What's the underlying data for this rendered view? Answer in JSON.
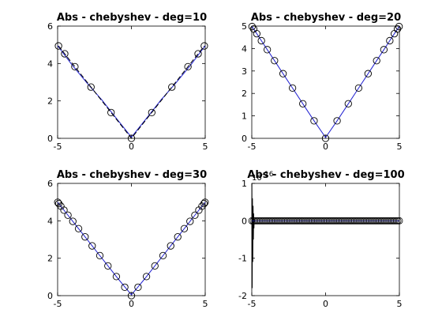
{
  "chart_data": [
    {
      "type": "line",
      "title": "Abs - chebyshev - deg=10",
      "xlim": [
        -5,
        5
      ],
      "ylim": [
        0,
        6
      ],
      "xticks": [
        -5,
        0,
        5
      ],
      "yticks": [
        0,
        2,
        4,
        6
      ],
      "grid": false,
      "series": [
        {
          "style": "blue-solid",
          "x": [
            -5,
            -4,
            -3,
            -2,
            -1,
            0,
            1,
            2,
            3,
            4,
            5
          ],
          "y": [
            4.95,
            3.9,
            2.95,
            2.05,
            1.05,
            0.06,
            1.05,
            2.05,
            2.95,
            3.9,
            4.95
          ]
        },
        {
          "style": "black-dashed",
          "x": [
            -4.94,
            -4.52,
            -3.83,
            -2.74,
            -1.38,
            0,
            1.38,
            2.74,
            3.83,
            4.52,
            4.94
          ],
          "y": [
            4.94,
            4.52,
            3.83,
            2.74,
            1.38,
            0,
            1.38,
            2.74,
            3.83,
            4.52,
            4.94
          ]
        },
        {
          "style": "black-circles",
          "x": [
            -4.94,
            -4.52,
            -3.83,
            -2.74,
            -1.38,
            0,
            1.38,
            2.74,
            3.83,
            4.52,
            4.94
          ],
          "y": [
            4.94,
            4.52,
            3.83,
            2.74,
            1.38,
            0,
            1.38,
            2.74,
            3.83,
            4.52,
            4.94
          ]
        }
      ]
    },
    {
      "type": "line",
      "title": "Abs - chebyshev - deg=20",
      "xlim": [
        -5,
        5
      ],
      "ylim": [
        0,
        5
      ],
      "xticks": [
        -5,
        0,
        5
      ],
      "yticks": [
        0,
        1,
        2,
        3,
        4,
        5
      ],
      "grid": false,
      "series": [
        {
          "style": "blue-solid",
          "x": [
            -4.98,
            -4.87,
            -4.66,
            -4.35,
            -3.95,
            -3.46,
            -2.88,
            -2.24,
            -1.54,
            -0.78,
            0,
            0.78,
            1.54,
            2.24,
            2.88,
            3.46,
            3.95,
            4.35,
            4.66,
            4.87,
            4.98
          ],
          "y": [
            4.98,
            4.87,
            4.66,
            4.35,
            3.95,
            3.46,
            2.88,
            2.24,
            1.54,
            0.78,
            0.04,
            0.78,
            1.54,
            2.24,
            2.88,
            3.46,
            3.95,
            4.35,
            4.66,
            4.87,
            4.98
          ]
        },
        {
          "style": "black-circles",
          "x": [
            -4.98,
            -4.87,
            -4.66,
            -4.35,
            -3.95,
            -3.46,
            -2.88,
            -2.24,
            -1.54,
            -0.78,
            0,
            0.78,
            1.54,
            2.24,
            2.88,
            3.46,
            3.95,
            4.35,
            4.66,
            4.87,
            4.98
          ],
          "y": [
            4.98,
            4.87,
            4.66,
            4.35,
            3.95,
            3.46,
            2.88,
            2.24,
            1.54,
            0.78,
            0,
            0.78,
            1.54,
            2.24,
            2.88,
            3.46,
            3.95,
            4.35,
            4.66,
            4.87,
            4.98
          ]
        }
      ]
    },
    {
      "type": "line",
      "title": "Abs - chebyshev - deg=30",
      "xlim": [
        -5,
        5
      ],
      "ylim": [
        0,
        6
      ],
      "xticks": [
        -5,
        0,
        5
      ],
      "yticks": [
        0,
        2,
        4,
        6
      ],
      "grid": false,
      "series": [
        {
          "style": "blue-solid",
          "x": [
            -4.99,
            -4.95,
            -4.86,
            -4.73,
            -4.55,
            -4.33,
            -4.07,
            -3.77,
            -3.44,
            -3.07,
            -2.68,
            -2.26,
            -1.82,
            -1.37,
            -0.91,
            -0.45,
            0,
            0.45,
            0.91,
            1.37,
            1.82,
            2.26,
            2.68,
            3.07,
            3.44,
            3.77,
            4.07,
            4.33,
            4.55,
            4.73,
            4.86,
            4.95,
            4.99
          ],
          "y": [
            4.99,
            4.95,
            4.86,
            4.73,
            4.55,
            4.33,
            4.07,
            3.77,
            3.44,
            3.07,
            2.68,
            2.26,
            1.82,
            1.37,
            0.91,
            0.47,
            0.05,
            0.47,
            0.91,
            1.37,
            1.82,
            2.26,
            2.68,
            3.07,
            3.44,
            3.77,
            4.07,
            4.33,
            4.55,
            4.73,
            4.86,
            4.95,
            4.99
          ]
        },
        {
          "style": "black-circles",
          "x": [
            -4.99,
            -4.92,
            -4.78,
            -4.57,
            -4.3,
            -3.97,
            -3.58,
            -3.14,
            -2.66,
            -2.14,
            -1.59,
            -1.02,
            -0.45,
            0,
            0.45,
            1.02,
            1.59,
            2.14,
            2.66,
            3.14,
            3.58,
            3.97,
            4.3,
            4.57,
            4.78,
            4.92,
            4.99
          ],
          "y": [
            4.99,
            4.92,
            4.78,
            4.57,
            4.3,
            3.97,
            3.58,
            3.14,
            2.66,
            2.14,
            1.59,
            1.02,
            0.45,
            0,
            0.45,
            1.02,
            1.59,
            2.14,
            2.66,
            3.14,
            3.58,
            3.97,
            4.3,
            4.57,
            4.78,
            4.92,
            4.99
          ]
        }
      ]
    },
    {
      "type": "line",
      "title": "Abs - chebyshev - deg=100",
      "exponent_label": "10^-16",
      "ylabel_multiplier": "x10^-16",
      "xlim": [
        -5,
        5
      ],
      "ylim": [
        -2,
        1
      ],
      "xticks": [
        -5,
        0,
        5
      ],
      "yticks": [
        -2,
        -1,
        0,
        1
      ],
      "grid": false,
      "series": [
        {
          "style": "black-spike",
          "x": [
            -4.99,
            -4.97,
            -4.95,
            -4.93,
            -4.91,
            -4.89,
            -4.87,
            -4.85,
            -4.83,
            -4.8
          ],
          "y": [
            1.0,
            -1.8,
            0.6,
            -1.1,
            0.4,
            -0.5,
            0.2,
            -0.2,
            0.05,
            0
          ]
        },
        {
          "style": "black-circles-dense",
          "x_range": [
            -5,
            5
          ],
          "count": 100,
          "y": 0
        }
      ]
    }
  ]
}
